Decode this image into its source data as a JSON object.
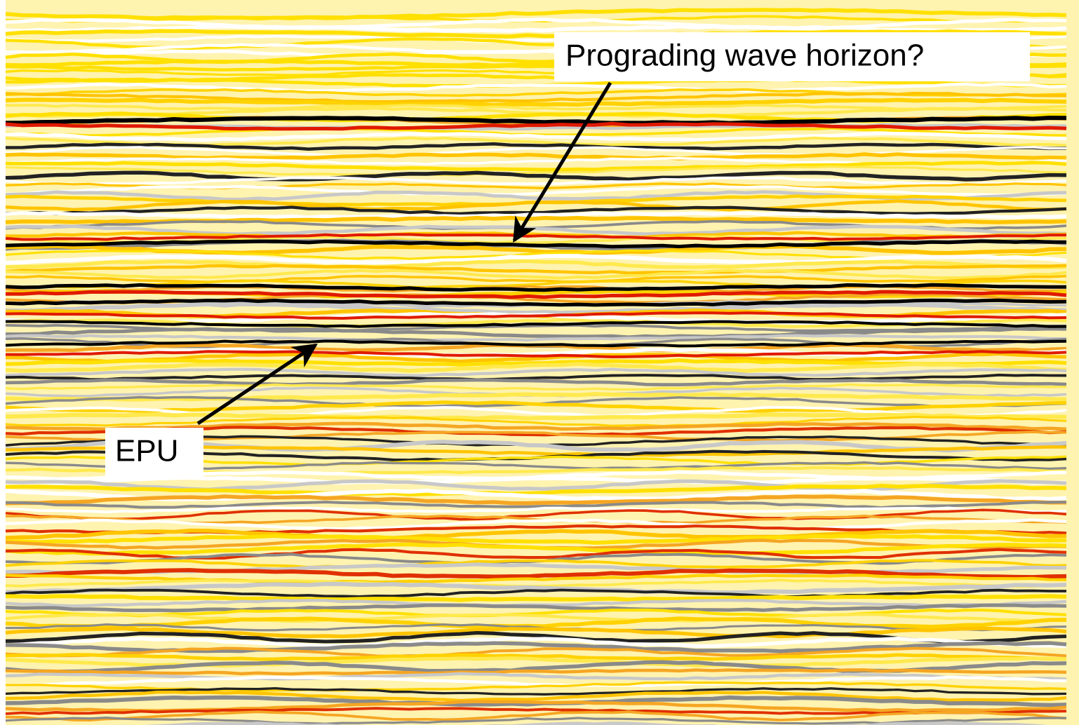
{
  "annotations": [
    {
      "label": "Prograding wave horizon?"
    },
    {
      "label": "EPU"
    }
  ]
}
